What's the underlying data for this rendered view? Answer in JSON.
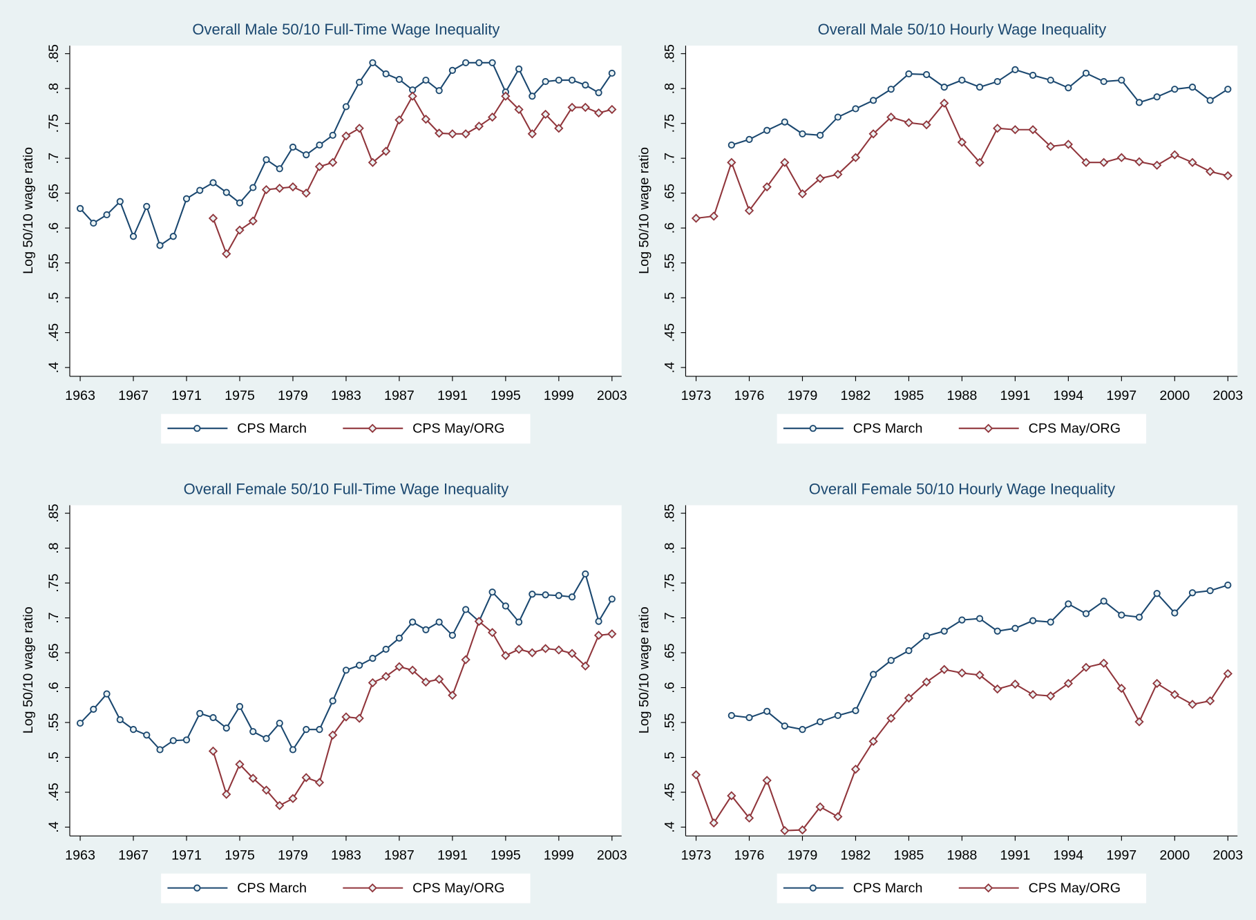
{
  "chart_data": [
    {
      "type": "line",
      "title": "Overall Male 50/10 Full-Time Wage Inequality",
      "ylabel": "Log 50/10 wage ratio",
      "x": [
        1963,
        1964,
        1965,
        1966,
        1967,
        1968,
        1969,
        1970,
        1971,
        1972,
        1973,
        1974,
        1975,
        1976,
        1977,
        1978,
        1979,
        1980,
        1981,
        1982,
        1983,
        1984,
        1985,
        1986,
        1987,
        1988,
        1989,
        1990,
        1991,
        1992,
        1993,
        1994,
        1995,
        1996,
        1997,
        1998,
        1999,
        2000,
        2001,
        2002,
        2003
      ],
      "xlim": [
        1963,
        2003
      ],
      "xticks": [
        1963,
        1967,
        1971,
        1975,
        1979,
        1983,
        1987,
        1991,
        1995,
        1999,
        2003
      ],
      "ylim": [
        0.4,
        0.85
      ],
      "yticks": [
        {
          "value": 0.4,
          "label": ".4"
        },
        {
          "value": 0.45,
          "label": ".45"
        },
        {
          "value": 0.5,
          "label": ".5"
        },
        {
          "value": 0.55,
          "label": ".55"
        },
        {
          "value": 0.6,
          "label": ".6"
        },
        {
          "value": 0.65,
          "label": ".65"
        },
        {
          "value": 0.7,
          "label": ".7"
        },
        {
          "value": 0.75,
          "label": ".75"
        },
        {
          "value": 0.8,
          "label": ".8"
        },
        {
          "value": 0.85,
          "label": ".85"
        }
      ],
      "series": [
        {
          "name": "CPS March",
          "color": "#1a476f",
          "marker": "circle",
          "values": [
            0.628,
            0.607,
            0.619,
            0.638,
            0.588,
            0.631,
            0.575,
            0.588,
            0.642,
            0.654,
            0.665,
            0.651,
            0.636,
            0.658,
            0.698,
            0.685,
            0.716,
            0.705,
            0.719,
            0.733,
            0.774,
            0.809,
            0.837,
            0.821,
            0.813,
            0.798,
            0.812,
            0.797,
            0.826,
            0.837,
            0.837,
            0.837,
            0.795,
            0.828,
            0.789,
            0.81,
            0.812,
            0.812,
            0.805,
            0.794,
            0.822
          ]
        },
        {
          "name": "CPS May/ORG",
          "color": "#90353b",
          "marker": "diamond",
          "values": [
            null,
            null,
            null,
            null,
            null,
            null,
            null,
            null,
            null,
            null,
            0.614,
            0.563,
            0.597,
            0.61,
            0.655,
            0.657,
            0.659,
            0.65,
            0.688,
            0.694,
            0.732,
            0.743,
            0.694,
            0.71,
            0.755,
            0.789,
            0.756,
            0.736,
            0.735,
            0.735,
            0.746,
            0.759,
            0.789,
            0.77,
            0.735,
            0.763,
            0.743,
            0.773,
            0.773,
            0.765,
            0.77
          ]
        }
      ]
    },
    {
      "type": "line",
      "title": "Overall Male 50/10 Hourly Wage Inequality",
      "ylabel": "Log 50/10 wage ratio",
      "x": [
        1973,
        1974,
        1975,
        1976,
        1977,
        1978,
        1979,
        1980,
        1981,
        1982,
        1983,
        1984,
        1985,
        1986,
        1987,
        1988,
        1989,
        1990,
        1991,
        1992,
        1993,
        1994,
        1995,
        1996,
        1997,
        1998,
        1999,
        2000,
        2001,
        2002,
        2003
      ],
      "xlim": [
        1973,
        2003
      ],
      "xticks": [
        1973,
        1976,
        1979,
        1982,
        1985,
        1988,
        1991,
        1994,
        1997,
        2000,
        2003
      ],
      "ylim": [
        0.4,
        0.85
      ],
      "yticks": [
        {
          "value": 0.4,
          "label": ".4"
        },
        {
          "value": 0.45,
          "label": ".45"
        },
        {
          "value": 0.5,
          "label": ".5"
        },
        {
          "value": 0.55,
          "label": ".55"
        },
        {
          "value": 0.6,
          "label": ".6"
        },
        {
          "value": 0.65,
          "label": ".65"
        },
        {
          "value": 0.7,
          "label": ".7"
        },
        {
          "value": 0.75,
          "label": ".75"
        },
        {
          "value": 0.8,
          "label": ".8"
        },
        {
          "value": 0.85,
          "label": ".85"
        }
      ],
      "series": [
        {
          "name": "CPS March",
          "color": "#1a476f",
          "marker": "circle",
          "values": [
            null,
            null,
            0.719,
            0.727,
            0.74,
            0.752,
            0.735,
            0.733,
            0.759,
            0.771,
            0.783,
            0.799,
            0.821,
            0.82,
            0.802,
            0.812,
            0.802,
            0.81,
            0.827,
            0.819,
            0.812,
            0.801,
            0.822,
            0.81,
            0.812,
            0.78,
            0.788,
            0.799,
            0.802,
            0.783,
            0.799
          ]
        },
        {
          "name": "CPS May/ORG",
          "color": "#90353b",
          "marker": "diamond",
          "values": [
            0.614,
            0.617,
            0.694,
            0.625,
            0.659,
            0.694,
            0.649,
            0.671,
            0.677,
            0.701,
            0.735,
            0.759,
            0.751,
            0.748,
            0.779,
            0.723,
            0.694,
            0.743,
            0.741,
            0.741,
            0.717,
            0.72,
            0.694,
            0.694,
            0.701,
            0.695,
            0.69,
            0.705,
            0.694,
            0.681,
            0.675
          ]
        }
      ]
    },
    {
      "type": "line",
      "title": "Overall Female 50/10 Full-Time Wage Inequality",
      "ylabel": "Log 50/10 wage ratio",
      "x": [
        1963,
        1964,
        1965,
        1966,
        1967,
        1968,
        1969,
        1970,
        1971,
        1972,
        1973,
        1974,
        1975,
        1976,
        1977,
        1978,
        1979,
        1980,
        1981,
        1982,
        1983,
        1984,
        1985,
        1986,
        1987,
        1988,
        1989,
        1990,
        1991,
        1992,
        1993,
        1994,
        1995,
        1996,
        1997,
        1998,
        1999,
        2000,
        2001,
        2002,
        2003
      ],
      "xlim": [
        1963,
        2003
      ],
      "xticks": [
        1963,
        1967,
        1971,
        1975,
        1979,
        1983,
        1987,
        1991,
        1995,
        1999,
        2003
      ],
      "ylim": [
        0.4,
        0.85
      ],
      "yticks": [
        {
          "value": 0.4,
          "label": ".4"
        },
        {
          "value": 0.45,
          "label": ".45"
        },
        {
          "value": 0.5,
          "label": ".5"
        },
        {
          "value": 0.55,
          "label": ".55"
        },
        {
          "value": 0.6,
          "label": ".6"
        },
        {
          "value": 0.65,
          "label": ".65"
        },
        {
          "value": 0.7,
          "label": ".7"
        },
        {
          "value": 0.75,
          "label": ".75"
        },
        {
          "value": 0.8,
          "label": ".8"
        },
        {
          "value": 0.85,
          "label": ".85"
        }
      ],
      "series": [
        {
          "name": "CPS March",
          "color": "#1a476f",
          "marker": "circle",
          "values": [
            0.549,
            0.569,
            0.591,
            0.554,
            0.54,
            0.532,
            0.511,
            0.524,
            0.525,
            0.563,
            0.557,
            0.542,
            0.573,
            0.537,
            0.527,
            0.549,
            0.511,
            0.54,
            0.54,
            0.581,
            0.625,
            0.632,
            0.642,
            0.655,
            0.671,
            0.694,
            0.683,
            0.694,
            0.675,
            0.712,
            0.695,
            0.737,
            0.717,
            0.694,
            0.734,
            0.733,
            0.732,
            0.73,
            0.763,
            0.695,
            0.727
          ]
        },
        {
          "name": "CPS May/ORG",
          "color": "#90353b",
          "marker": "diamond",
          "values": [
            null,
            null,
            null,
            null,
            null,
            null,
            null,
            null,
            null,
            null,
            0.509,
            0.447,
            0.49,
            0.47,
            0.453,
            0.431,
            0.441,
            0.471,
            0.464,
            0.532,
            0.558,
            0.556,
            0.607,
            0.616,
            0.63,
            0.625,
            0.608,
            0.612,
            0.589,
            0.64,
            0.695,
            0.679,
            0.646,
            0.655,
            0.65,
            0.656,
            0.654,
            0.649,
            0.631,
            0.675,
            0.677
          ]
        }
      ]
    },
    {
      "type": "line",
      "title": "Overall Female 50/10 Hourly Wage Inequality",
      "ylabel": "Log 50/10 wage ratio",
      "x": [
        1973,
        1974,
        1975,
        1976,
        1977,
        1978,
        1979,
        1980,
        1981,
        1982,
        1983,
        1984,
        1985,
        1986,
        1987,
        1988,
        1989,
        1990,
        1991,
        1992,
        1993,
        1994,
        1995,
        1996,
        1997,
        1998,
        1999,
        2000,
        2001,
        2002,
        2003
      ],
      "xlim": [
        1973,
        2003
      ],
      "xticks": [
        1973,
        1976,
        1979,
        1982,
        1985,
        1988,
        1991,
        1994,
        1997,
        2000,
        2003
      ],
      "ylim": [
        0.4,
        0.85
      ],
      "yticks": [
        {
          "value": 0.4,
          "label": ".4"
        },
        {
          "value": 0.45,
          "label": ".45"
        },
        {
          "value": 0.5,
          "label": ".5"
        },
        {
          "value": 0.55,
          "label": ".55"
        },
        {
          "value": 0.6,
          "label": ".6"
        },
        {
          "value": 0.65,
          "label": ".65"
        },
        {
          "value": 0.7,
          "label": ".7"
        },
        {
          "value": 0.75,
          "label": ".75"
        },
        {
          "value": 0.8,
          "label": ".8"
        },
        {
          "value": 0.85,
          "label": ".85"
        }
      ],
      "series": [
        {
          "name": "CPS March",
          "color": "#1a476f",
          "marker": "circle",
          "values": [
            null,
            null,
            0.56,
            0.557,
            0.566,
            0.545,
            0.54,
            0.551,
            0.56,
            0.567,
            0.619,
            0.639,
            0.653,
            0.674,
            0.681,
            0.697,
            0.699,
            0.681,
            0.685,
            0.696,
            0.694,
            0.72,
            0.706,
            0.724,
            0.704,
            0.701,
            0.735,
            0.707,
            0.736,
            0.739,
            0.747
          ]
        },
        {
          "name": "CPS May/ORG",
          "color": "#90353b",
          "marker": "diamond",
          "values": [
            0.475,
            0.406,
            0.445,
            0.413,
            0.467,
            0.395,
            0.396,
            0.429,
            0.415,
            0.483,
            0.523,
            0.556,
            0.585,
            0.608,
            0.626,
            0.621,
            0.618,
            0.598,
            0.605,
            0.59,
            0.588,
            0.606,
            0.629,
            0.635,
            0.599,
            0.551,
            0.606,
            0.59,
            0.576,
            0.581,
            0.62
          ]
        }
      ]
    }
  ]
}
